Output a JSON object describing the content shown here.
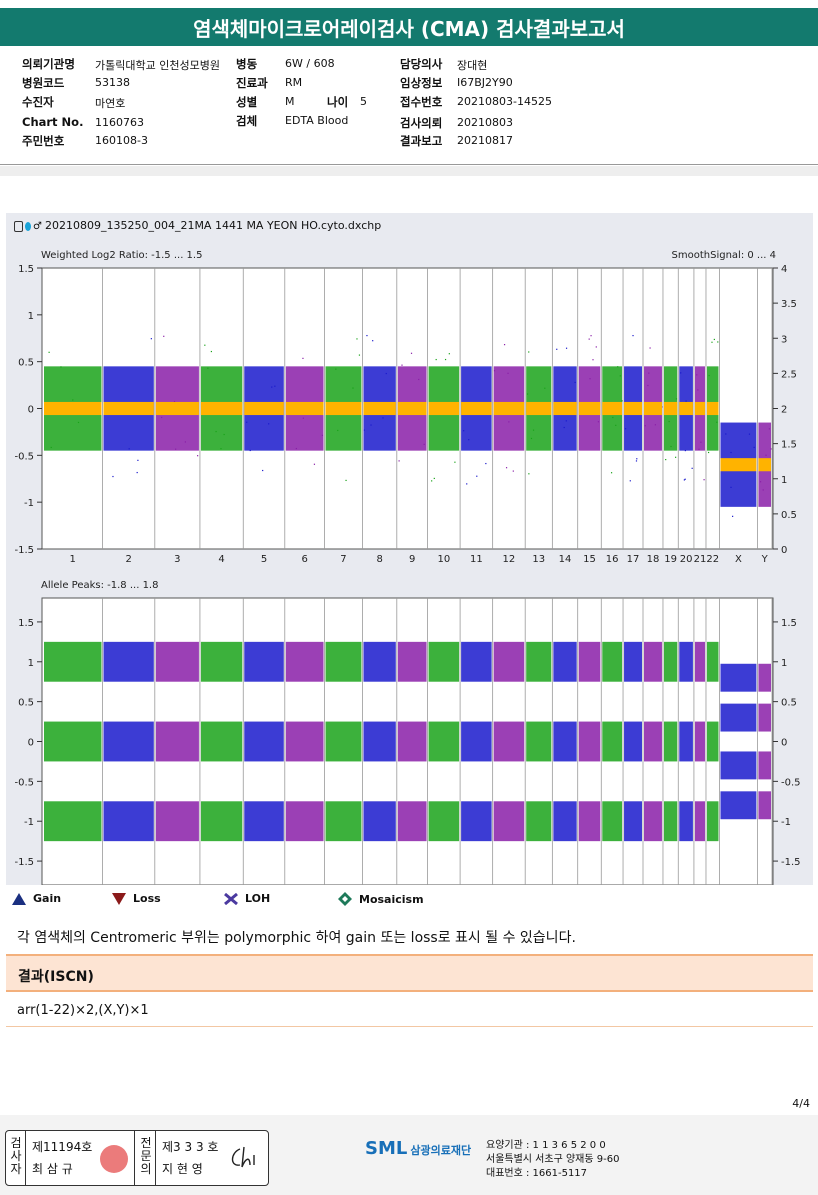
{
  "title": "염색체마이크로어레이검사 (CMA) 검사결과보고서",
  "info": {
    "org_label": "의뢰기관명",
    "org_value": "가톨릭대학교 인천성모병원",
    "ward_label": "병동",
    "ward_value": "6W / 608",
    "doctor_label": "담당의사",
    "doctor_value": "장대현",
    "hospcode_label": "병원코드",
    "hospcode_value": "53138",
    "dept_label": "진료과",
    "dept_value": "RM",
    "clinical_label": "임상정보",
    "clinical_value": "I67BJ2Y90",
    "name_label": "수진자",
    "name_value": "마연호",
    "sex_label": "성별",
    "sex_value": "M",
    "age_label": "나이",
    "age_value": "5",
    "receipt_label": "접수번호",
    "receipt_value": "20210803-14525",
    "chart_label": "Chart No.",
    "chart_value": "1160763",
    "specimen_label": "검체",
    "specimen_value": "EDTA Blood",
    "request_label": "검사의뢰",
    "request_value": "20210803",
    "ssn_label": "주민번호",
    "ssn_value": "160108-3",
    "report_label": "결과보고",
    "report_value": "20210817"
  },
  "plot": {
    "filename": "20210809_135250_004_21MA 1441 MA YEON HO.cyto.dxchp",
    "top_label": "Weighted Log2 Ratio: -1.5 ... 1.5",
    "top_right_label": "SmoothSignal: 0 ... 4",
    "top_left_ticks": [
      "1.5",
      "1",
      "0.5",
      "0",
      "-0.5",
      "-1",
      "-1.5"
    ],
    "top_right_ticks": [
      "4",
      "3.5",
      "3",
      "2.5",
      "2",
      "1.5",
      "1",
      "0.5",
      "0"
    ],
    "bottom_label": "Allele Peaks: -1.8 ... 1.8",
    "bottom_ticks": [
      "1.5",
      "1",
      "0.5",
      "0",
      "-0.5",
      "-1",
      "-1.5"
    ],
    "chromosomes": [
      "1",
      "2",
      "3",
      "4",
      "5",
      "6",
      "7",
      "8",
      "9",
      "10",
      "11",
      "12",
      "13",
      "14",
      "15",
      "16",
      "17",
      "18",
      "19",
      "20",
      "21",
      "22",
      "X",
      "Y"
    ],
    "colors": {
      "green": "#1aa31a",
      "blue": "#1a1acc",
      "purple": "#8a1fa8",
      "orange": "#ffb300"
    }
  },
  "legend": {
    "gain": "Gain",
    "loss": "Loss",
    "loh": "LOH",
    "mosaicism": "Mosaicism"
  },
  "note": "각 염색체의 Centromeric 부위는 polymorphic 하여 gain 또는 loss로 표시 될 수 있습니다.",
  "result": {
    "heading": "결과(ISCN)",
    "value": "arr(1-22)×2,(X,Y)×1"
  },
  "page": "4/4",
  "footer": {
    "sign1_title": "검사자",
    "sign1_no": "제11194호",
    "sign1_name": "최 삼 규",
    "sign2_title": "전문의",
    "sign2_no": "제3 3 3 호",
    "sign2_name": "지 현 영",
    "logo": "SML",
    "org": "삼광의료재단",
    "line1": "요양기관 : 1 1 3 6 5 2 0 0",
    "line2": "서울특별시 서초구 양재동 9-60",
    "line3": "대표번호 : 1661-5117"
  }
}
